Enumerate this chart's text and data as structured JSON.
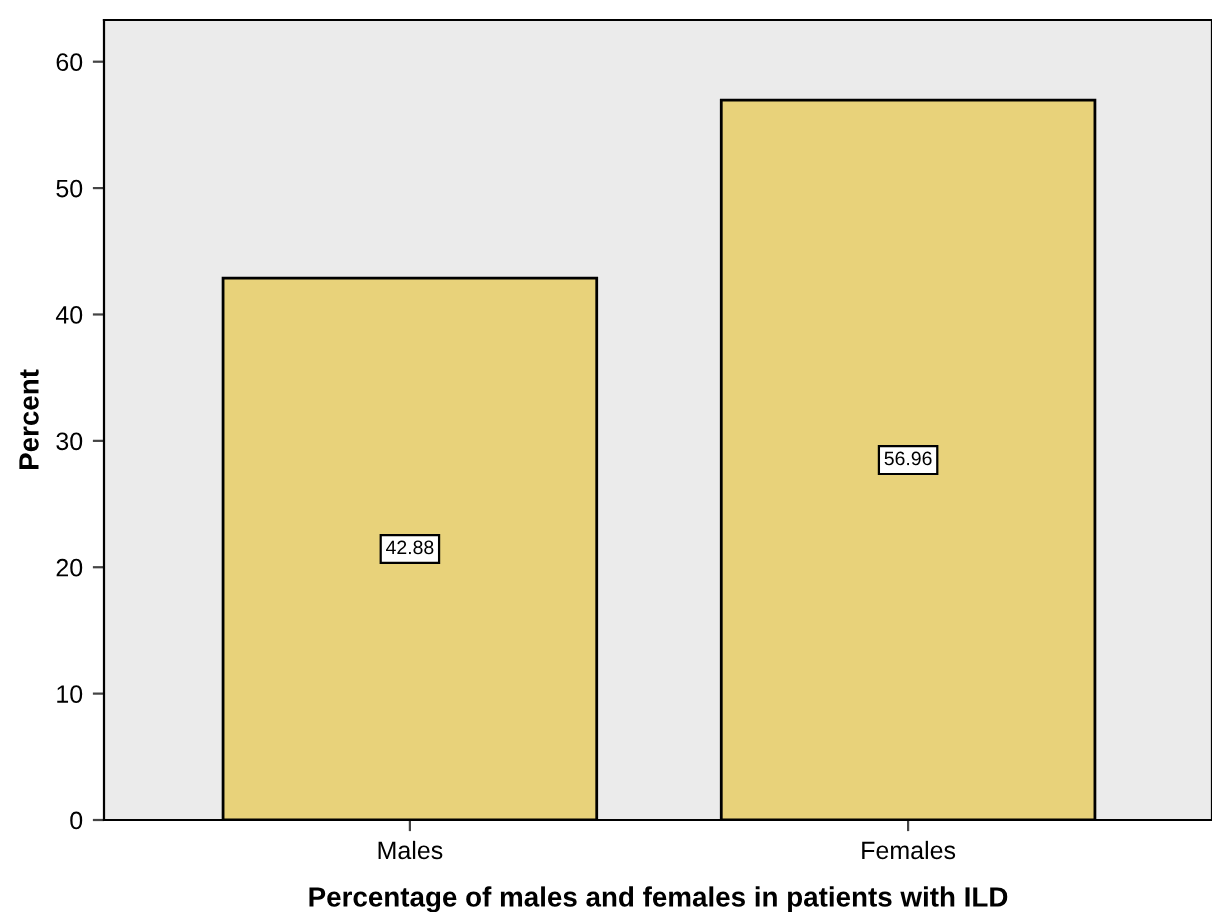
{
  "chart_data": {
    "type": "bar",
    "xlabel": "Percentage of males and females in patients with ILD",
    "ylabel": "Percent",
    "categories": [
      "Males",
      "Females"
    ],
    "values": [
      42.88,
      56.96
    ],
    "color": "#e8d27a",
    "ylim": [
      0,
      63.3
    ],
    "yticks": [
      0,
      10,
      20,
      30,
      40,
      50,
      60
    ],
    "data_labels": true,
    "grid": false,
    "legend": false
  }
}
